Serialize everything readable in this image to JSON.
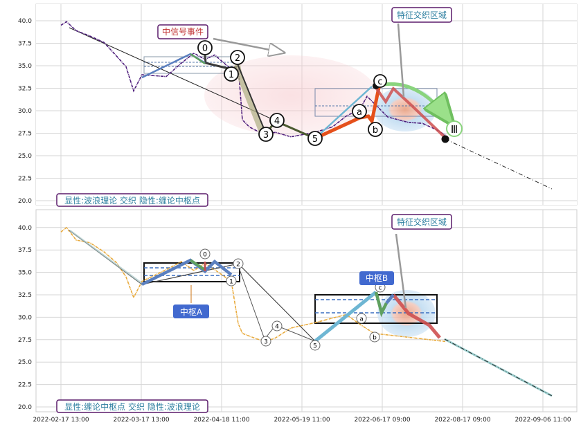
{
  "chart_data": [
    {
      "type": "line",
      "panel_caption": "显性:波浪理论 交织 隐性:缠论中枢点",
      "annotations": {
        "event": "中信号事件",
        "feature_zone": "特征交织区域",
        "wave_labels": [
          "0",
          "1",
          "2",
          "3",
          "4",
          "5",
          "a",
          "b",
          "c"
        ],
        "roman": "Ⅲ"
      },
      "ylim": [
        19.5,
        42
      ],
      "y_ticks": [
        "20.0",
        "22.5",
        "25.0",
        "27.5",
        "30.0",
        "32.5",
        "35.0",
        "37.5",
        "40.0"
      ],
      "series": [
        {
          "values": [
            39.5,
            39.9,
            38.9,
            38.3,
            37.6,
            36.1,
            34.9,
            32.2,
            34.0,
            33.8,
            35.3,
            36.4,
            35.7,
            36.2,
            34.6,
            35.0,
            29.0,
            28.2,
            27.8,
            27.4,
            27.6,
            27.1,
            27.6,
            28.2,
            29.4,
            30.2,
            31.6,
            29.3,
            28.7,
            28.6,
            27.9,
            27.3
          ]
        },
        {
          "values": [
            33.8,
            36.4,
            35.2,
            34.6,
            35.7,
            27.0,
            28.5,
            27.2,
            28.4,
            29.1,
            33.0
          ]
        },
        {
          "values": [
            27.3,
            28.8,
            30.2,
            32.8
          ]
        }
      ]
    },
    {
      "type": "line",
      "panel_caption": "显性:缠论中枢点 交织 隐性:波浪理论",
      "annotations": {
        "zs_a": "中枢A",
        "zs_b": "中枢B",
        "feature_zone": "特征交织区域",
        "wave_labels": [
          "0",
          "1",
          "2",
          "3",
          "4",
          "5",
          "a",
          "b",
          "c"
        ]
      },
      "ylim": [
        19.5,
        42
      ],
      "y_ticks": [
        "20.0",
        "22.5",
        "25.0",
        "27.5",
        "30.0",
        "32.5",
        "35.0",
        "37.5",
        "40.0"
      ],
      "series": [
        {
          "values": [
            39.5,
            40.0,
            38.6,
            38.3,
            37.3,
            36.1,
            34.5,
            32.2,
            34.0,
            35.3,
            36.2,
            35.2,
            36.0,
            35.3,
            34.0,
            29.3,
            28.2,
            27.6,
            27.3,
            27.7,
            28.8,
            29.4,
            30.3,
            29.2,
            28.2,
            27.3
          ]
        },
        {
          "values": [
            33.8,
            36.5,
            34.8,
            36.2,
            34.7,
            35.7,
            27.5,
            32.8,
            30.5,
            32.5,
            27.8
          ]
        }
      ]
    }
  ],
  "x_ticks": [
    "2022-02-17 13:00",
    "2022-03-17 13:00",
    "2022-04-18 11:00",
    "2022-05-19 11:00",
    "2022-06-17 09:00",
    "2022-08-17 09:00",
    "2022-09-06 11:00"
  ]
}
